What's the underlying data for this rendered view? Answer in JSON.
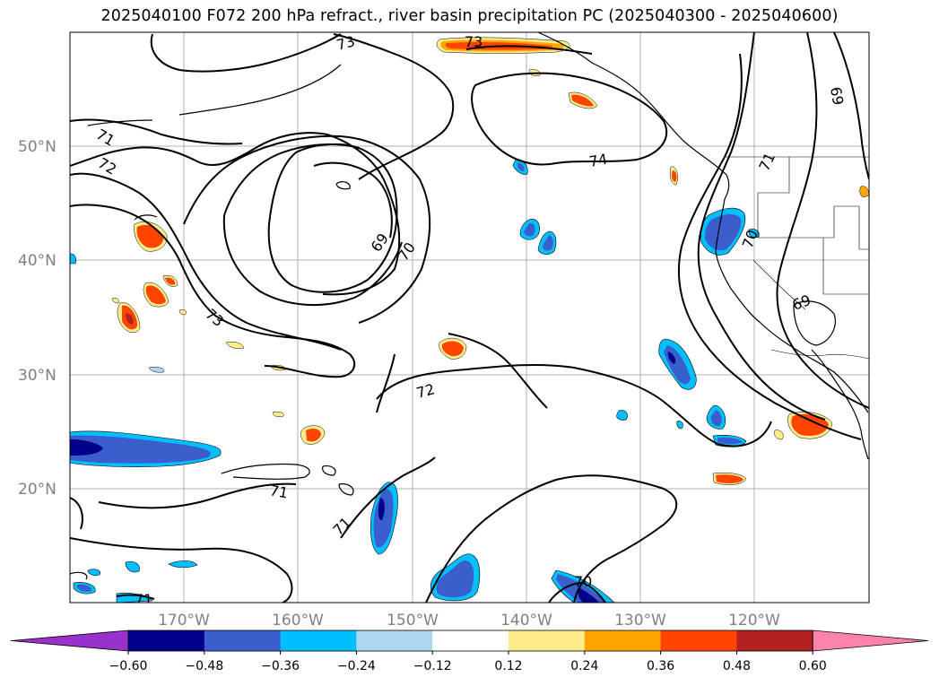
{
  "title": "2025040100 F072 200 hPa refract., river basin precipitation PC (2025040300 - 2025040600)",
  "map": {
    "lat_ticks": [
      "50°N",
      "40°N",
      "30°N",
      "20°N"
    ],
    "lon_ticks": [
      "170°W",
      "160°W",
      "150°W",
      "140°W",
      "130°W",
      "120°W"
    ],
    "lat_range": [
      10,
      60
    ],
    "lon_range": [
      -180,
      -110
    ],
    "grid": true
  },
  "colorbar": {
    "ticks": [
      "-0.60",
      "-0.48",
      "-0.36",
      "-0.24",
      "-0.12",
      "0.12",
      "0.24",
      "0.36",
      "0.48",
      "0.60"
    ],
    "colors": [
      "#9932CC",
      "#00008B",
      "#3A5FCD",
      "#00BFFF",
      "#ADD8F0",
      "#FFFFFF",
      "#FFEC8B",
      "#FFA500",
      "#FF4500",
      "#B22222",
      "#FF82AB"
    ],
    "extend": "both",
    "orientation": "horizontal"
  },
  "contour_labels": [
    "73",
    "73",
    "69",
    "71",
    "72",
    "74",
    "71",
    "69",
    "70",
    "73",
    "70",
    "69",
    "72",
    "71",
    "71",
    "70",
    "71"
  ]
}
